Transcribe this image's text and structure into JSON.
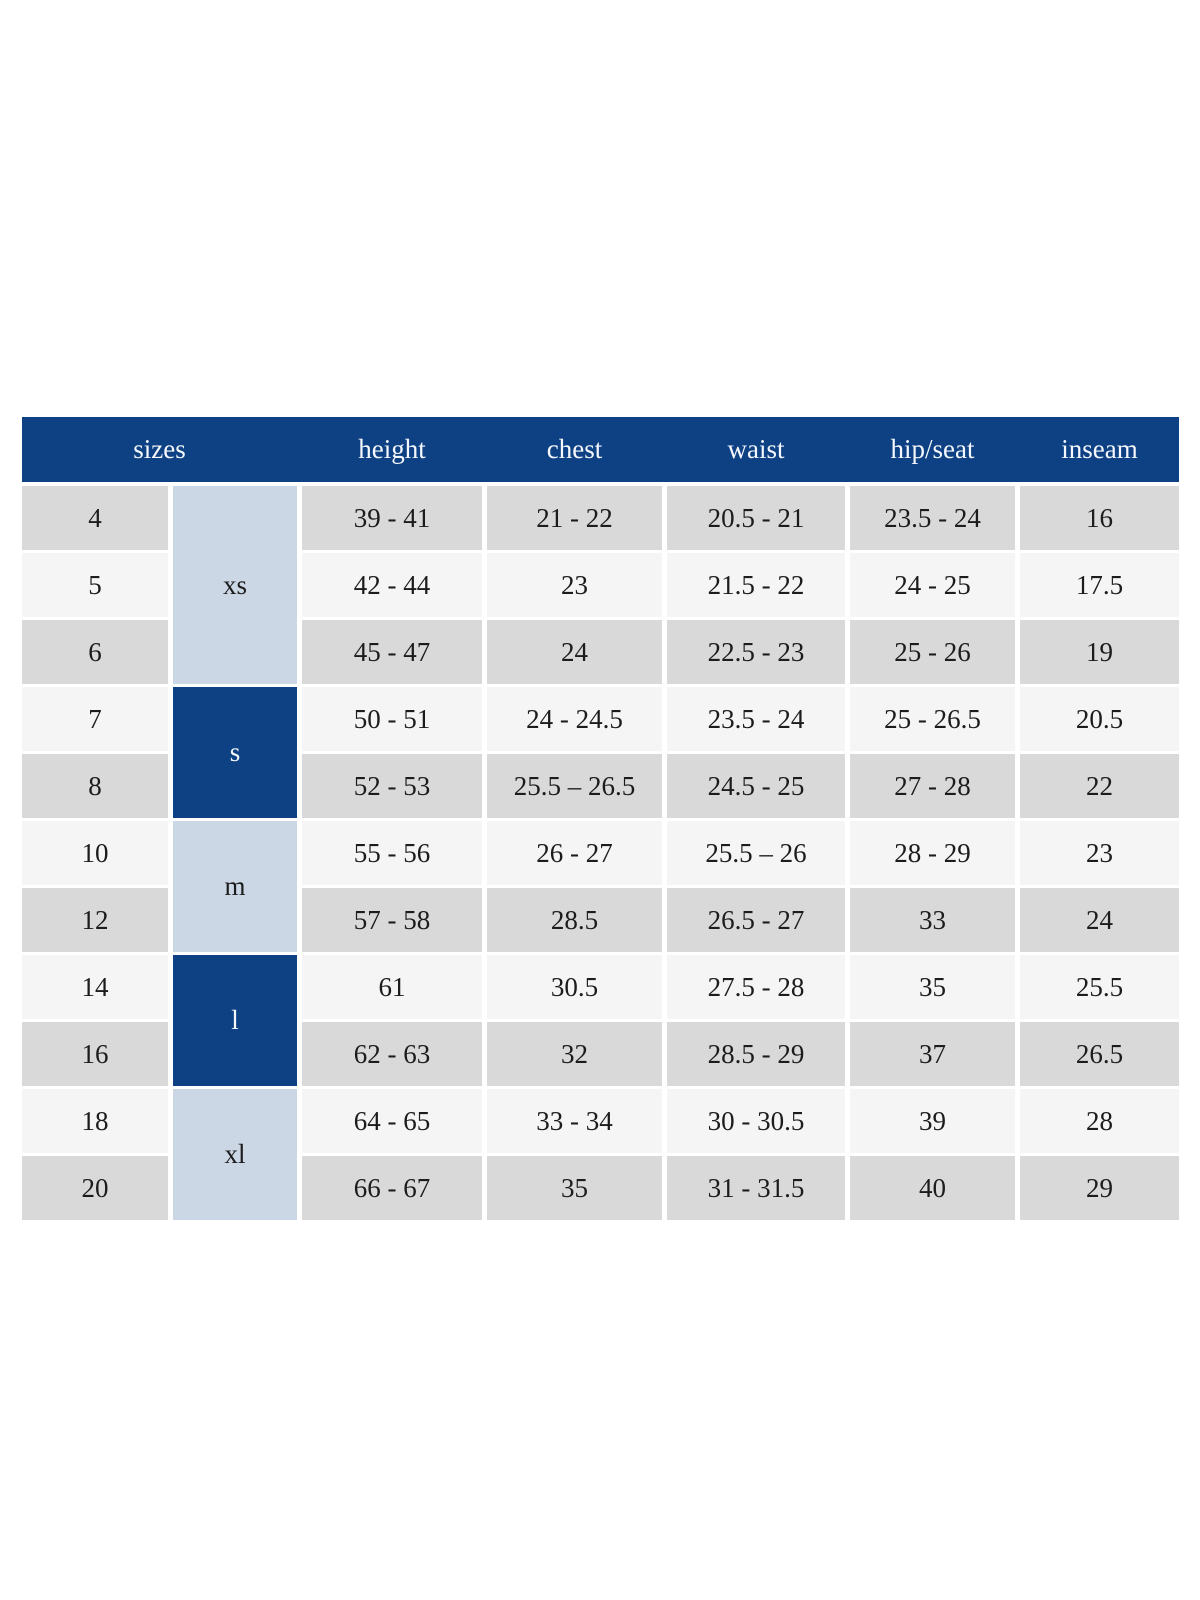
{
  "theme": {
    "navy": "#0e4184",
    "light_blue": "#ccd7e6",
    "row_gray": "#d9d9d9",
    "row_light": "#f5f5f5",
    "text_dark": "#1c1c1c",
    "text_white": "#f4f7fb",
    "page_bg": "#ffffff"
  },
  "table": {
    "header": {
      "sizes_label": "sizes",
      "columns": [
        "height",
        "chest",
        "waist",
        "hip/seat",
        "inseam"
      ]
    },
    "groups": [
      {
        "label": "xs",
        "row_start": 0,
        "row_span": 3,
        "style": "light"
      },
      {
        "label": "s",
        "row_start": 3,
        "row_span": 2,
        "style": "dark"
      },
      {
        "label": "m",
        "row_start": 5,
        "row_span": 2,
        "style": "light"
      },
      {
        "label": "l",
        "row_start": 7,
        "row_span": 2,
        "style": "dark"
      },
      {
        "label": "xl",
        "row_start": 9,
        "row_span": 2,
        "style": "light"
      }
    ],
    "rows": [
      {
        "size": "4",
        "height": "39 - 41",
        "chest": "21 - 22",
        "waist": "20.5 - 21",
        "hip_seat": "23.5 - 24",
        "inseam": "16"
      },
      {
        "size": "5",
        "height": "42 - 44",
        "chest": "23",
        "waist": "21.5 - 22",
        "hip_seat": "24 - 25",
        "inseam": "17.5"
      },
      {
        "size": "6",
        "height": "45 - 47",
        "chest": "24",
        "waist": "22.5 - 23",
        "hip_seat": "25 - 26",
        "inseam": "19"
      },
      {
        "size": "7",
        "height": "50 - 51",
        "chest": "24 - 24.5",
        "waist": "23.5 - 24",
        "hip_seat": "25 - 26.5",
        "inseam": "20.5"
      },
      {
        "size": "8",
        "height": "52 - 53",
        "chest": "25.5 – 26.5",
        "waist": "24.5 - 25",
        "hip_seat": "27 - 28",
        "inseam": "22"
      },
      {
        "size": "10",
        "height": "55 - 56",
        "chest": "26 - 27",
        "waist": "25.5 – 26",
        "hip_seat": "28 - 29",
        "inseam": "23"
      },
      {
        "size": "12",
        "height": "57 - 58",
        "chest": "28.5",
        "waist": "26.5 - 27",
        "hip_seat": "33",
        "inseam": "24"
      },
      {
        "size": "14",
        "height": "61",
        "chest": "30.5",
        "waist": "27.5 - 28",
        "hip_seat": "35",
        "inseam": "25.5"
      },
      {
        "size": "16",
        "height": "62 - 63",
        "chest": "32",
        "waist": "28.5 - 29",
        "hip_seat": "37",
        "inseam": "26.5"
      },
      {
        "size": "18",
        "height": "64 - 65",
        "chest": "33 - 34",
        "waist": "30 - 30.5",
        "hip_seat": "39",
        "inseam": "28"
      },
      {
        "size": "20",
        "height": "66 - 67",
        "chest": "35",
        "waist": "31 - 31.5",
        "hip_seat": "40",
        "inseam": "29"
      }
    ]
  }
}
